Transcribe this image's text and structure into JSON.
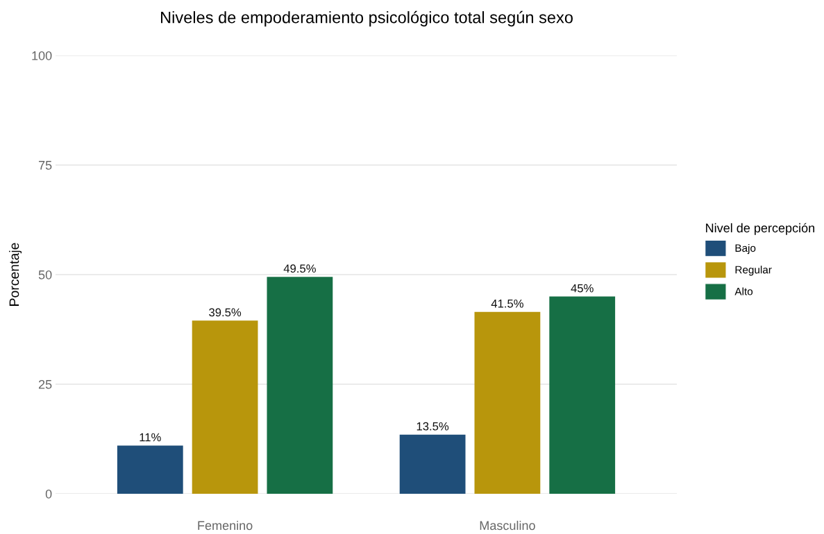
{
  "chart_data": {
    "type": "bar",
    "title": "Niveles de empoderamiento psicológico total según sexo",
    "ylabel": "Porcentaje",
    "legend_title": "Nivel de percepción",
    "categories": [
      "Femenino",
      "Masculino"
    ],
    "series": [
      {
        "name": "Bajo",
        "color": "#1f4e79",
        "values": [
          11,
          13.5
        ],
        "value_labels": [
          "11%",
          "13.5%"
        ]
      },
      {
        "name": "Regular",
        "color": "#b8960c",
        "values": [
          39.5,
          41.5
        ],
        "value_labels": [
          "39.5%",
          "41.5%"
        ]
      },
      {
        "name": "Alto",
        "color": "#166f45",
        "values": [
          49.5,
          45
        ],
        "value_labels": [
          "49.5%",
          "45%"
        ]
      }
    ],
    "ylim": [
      0,
      100
    ],
    "yticks": [
      0,
      25,
      50,
      75,
      100
    ],
    "grid": "y",
    "legend": "right"
  }
}
